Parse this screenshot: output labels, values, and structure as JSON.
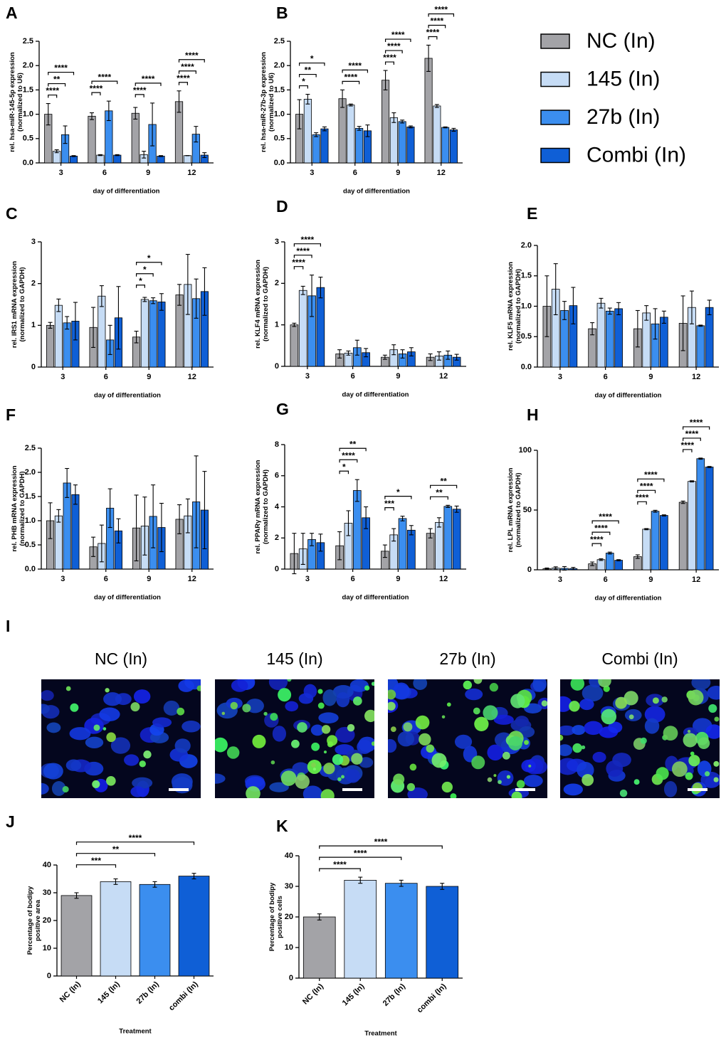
{
  "legend": [
    {
      "name": "NC (In)",
      "color": "#a3a3a7"
    },
    {
      "name": "145 (In)",
      "color": "#c6dcf5"
    },
    {
      "name": "27b (In)",
      "color": "#3b8eef"
    },
    {
      "name": "Combi (In)",
      "color": "#0f5fd6"
    }
  ],
  "chart_data": [
    {
      "panel": "A",
      "type": "grouped_bar",
      "ylabel": [
        "rel. hsa-miR-145-5p expression",
        "(normalized to U6)"
      ],
      "xlabel": "day of differentiation",
      "categories": [
        "3",
        "6",
        "9",
        "12"
      ],
      "series": [
        {
          "values": [
            1.0,
            0.96,
            1.02,
            1.26
          ],
          "errors": [
            0.22,
            0.07,
            0.12,
            0.22
          ]
        },
        {
          "values": [
            0.24,
            0.16,
            0.17,
            0.15
          ],
          "errors": [
            0.03,
            0.01,
            0.07,
            0.0
          ]
        },
        {
          "values": [
            0.58,
            1.07,
            0.79,
            0.59
          ],
          "errors": [
            0.18,
            0.2,
            0.44,
            0.16
          ]
        },
        {
          "values": [
            0.14,
            0.16,
            0.14,
            0.16
          ],
          "errors": [
            0.01,
            0.01,
            0.01,
            0.05
          ]
        }
      ],
      "ylim": [
        0,
        2.5
      ],
      "yticks": [
        {
          "value": 0,
          "label": "0.0"
        },
        0.5,
        {
          "value": 1,
          "label": "1.0"
        },
        1.5,
        {
          "value": 2,
          "label": "2.0"
        },
        2.5
      ],
      "brackets": [
        {
          "category": "3",
          "from": "NC (In)",
          "to": "145 (In)",
          "label": "****"
        },
        {
          "category": "3",
          "from": "NC (In)",
          "to": "27b (In)",
          "label": "**"
        },
        {
          "category": "3",
          "from": "NC (In)",
          "to": "Combi (In)",
          "label": "****"
        },
        {
          "category": "6",
          "from": "NC (In)",
          "to": "145 (In)",
          "label": "****"
        },
        {
          "category": "6",
          "from": "NC (In)",
          "to": "Combi (In)",
          "label": "****"
        },
        {
          "category": "9",
          "from": "NC (In)",
          "to": "145 (In)",
          "label": "****"
        },
        {
          "category": "9",
          "from": "NC (In)",
          "to": "Combi (In)",
          "label": "****"
        },
        {
          "category": "12",
          "from": "NC (In)",
          "to": "145 (In)",
          "label": "****"
        },
        {
          "category": "12",
          "from": "NC (In)",
          "to": "27b (In)",
          "label": "****"
        },
        {
          "category": "12",
          "from": "NC (In)",
          "to": "Combi (In)",
          "label": "****"
        }
      ]
    },
    {
      "panel": "B",
      "type": "grouped_bar",
      "ylabel": [
        "rel. hsa-miR-27b-3p expression",
        "(normalized to U6)"
      ],
      "xlabel": "day of differentiation",
      "categories": [
        "3",
        "6",
        "9",
        "12"
      ],
      "series": [
        {
          "values": [
            1.0,
            1.32,
            1.7,
            2.15
          ],
          "errors": [
            0.3,
            0.18,
            0.2,
            0.27
          ]
        },
        {
          "values": [
            1.31,
            1.19,
            0.93,
            1.17
          ],
          "errors": [
            0.1,
            0.02,
            0.1,
            0.03
          ]
        },
        {
          "values": [
            0.58,
            0.71,
            0.85,
            0.73
          ],
          "errors": [
            0.04,
            0.04,
            0.03,
            0.01
          ]
        },
        {
          "values": [
            0.7,
            0.66,
            0.74,
            0.68
          ],
          "errors": [
            0.04,
            0.12,
            0.02,
            0.03
          ]
        }
      ],
      "ylim": [
        0,
        2.5
      ],
      "yticks": [
        {
          "value": 0,
          "label": "0.0"
        },
        0.5,
        {
          "value": 1,
          "label": "1.0"
        },
        1.5,
        {
          "value": 2,
          "label": "2.0"
        },
        2.5
      ],
      "brackets": [
        {
          "category": "3",
          "from": "NC (In)",
          "to": "145 (In)",
          "label": "*"
        },
        {
          "category": "3",
          "from": "NC (In)",
          "to": "27b (In)",
          "label": "**"
        },
        {
          "category": "3",
          "from": "NC (In)",
          "to": "Combi (In)",
          "label": "*"
        },
        {
          "category": "6",
          "from": "NC (In)",
          "to": "27b (In)",
          "label": "****"
        },
        {
          "category": "6",
          "from": "NC (In)",
          "to": "Combi (In)",
          "label": "****"
        },
        {
          "category": "9",
          "from": "NC (In)",
          "to": "145 (In)",
          "label": "****"
        },
        {
          "category": "9",
          "from": "NC (In)",
          "to": "27b (In)",
          "label": "****"
        },
        {
          "category": "9",
          "from": "NC (In)",
          "to": "Combi (In)",
          "label": "****"
        },
        {
          "category": "12",
          "from": "NC (In)",
          "to": "145 (In)",
          "label": "****"
        },
        {
          "category": "12",
          "from": "NC (In)",
          "to": "27b (In)",
          "label": "****"
        },
        {
          "category": "12",
          "from": "NC (In)",
          "to": "Combi (In)",
          "label": "****"
        }
      ]
    },
    {
      "panel": "C",
      "type": "grouped_bar",
      "ylabel": [
        "rel. IRS1 mRNA expression",
        "(normalized to GAPDH)"
      ],
      "xlabel": "day of differentiation",
      "categories": [
        "3",
        "6",
        "9",
        "12"
      ],
      "series": [
        {
          "values": [
            1.0,
            0.95,
            0.72,
            1.73
          ],
          "errors": [
            0.07,
            0.48,
            0.14,
            0.25
          ]
        },
        {
          "values": [
            1.48,
            1.7,
            1.62,
            1.98
          ],
          "errors": [
            0.15,
            0.25,
            0.05,
            0.72
          ]
        },
        {
          "values": [
            1.06,
            0.65,
            1.59,
            1.64
          ],
          "errors": [
            0.15,
            0.35,
            0.07,
            0.47
          ]
        },
        {
          "values": [
            1.1,
            1.18,
            1.56,
            1.81
          ],
          "errors": [
            0.45,
            0.75,
            0.2,
            0.57
          ]
        }
      ],
      "ylim": [
        0,
        3
      ],
      "yticks": [
        0,
        1,
        2,
        3
      ],
      "brackets": [
        {
          "category": "9",
          "from": "NC (In)",
          "to": "145 (In)",
          "label": "*"
        },
        {
          "category": "9",
          "from": "NC (In)",
          "to": "27b (In)",
          "label": "*"
        },
        {
          "category": "9",
          "from": "NC (In)",
          "to": "Combi (In)",
          "label": "*"
        }
      ]
    },
    {
      "panel": "D",
      "type": "grouped_bar",
      "ylabel": [
        "rel. KLF4 mRNA expression",
        "(normalized to GAPDH)"
      ],
      "xlabel": "day of differentiation",
      "categories": [
        "3",
        "6",
        "9",
        "12"
      ],
      "series": [
        {
          "values": [
            1.0,
            0.3,
            0.22,
            0.22
          ],
          "errors": [
            0.04,
            0.1,
            0.05,
            0.08
          ]
        },
        {
          "values": [
            1.83,
            0.32,
            0.4,
            0.25
          ],
          "errors": [
            0.1,
            0.05,
            0.12,
            0.1
          ]
        },
        {
          "values": [
            1.7,
            0.45,
            0.3,
            0.27
          ],
          "errors": [
            0.5,
            0.18,
            0.1,
            0.1
          ]
        },
        {
          "values": [
            1.9,
            0.33,
            0.35,
            0.22
          ],
          "errors": [
            0.25,
            0.1,
            0.1,
            0.07
          ]
        }
      ],
      "ylim": [
        0,
        3
      ],
      "yticks": [
        0,
        1,
        2,
        3
      ],
      "brackets": [
        {
          "category": "3",
          "from": "NC (In)",
          "to": "145 (In)",
          "label": "****"
        },
        {
          "category": "3",
          "from": "NC (In)",
          "to": "27b (In)",
          "label": "****"
        },
        {
          "category": "3",
          "from": "NC (In)",
          "to": "Combi (In)",
          "label": "****"
        }
      ]
    },
    {
      "panel": "E",
      "type": "grouped_bar",
      "ylabel": [
        "rel. KLF5 mRNA expression",
        "(normalized to GAPDH)"
      ],
      "xlabel": "day of differentiation",
      "categories": [
        "3",
        "6",
        "9",
        "12"
      ],
      "series": [
        {
          "values": [
            1.0,
            0.63,
            0.63,
            0.72
          ],
          "errors": [
            0.5,
            0.1,
            0.3,
            0.45
          ]
        },
        {
          "values": [
            1.28,
            1.05,
            0.89,
            0.98
          ],
          "errors": [
            0.42,
            0.08,
            0.12,
            0.27
          ]
        },
        {
          "values": [
            0.93,
            0.92,
            0.71,
            0.68
          ],
          "errors": [
            0.15,
            0.05,
            0.25,
            0.01
          ]
        },
        {
          "values": [
            1.01,
            0.96,
            0.82,
            0.98
          ],
          "errors": [
            0.3,
            0.1,
            0.1,
            0.12
          ]
        }
      ],
      "ylim": [
        0,
        2
      ],
      "yticks": [
        {
          "value": 0,
          "label": "0.0"
        },
        0.5,
        {
          "value": 1,
          "label": "1.0"
        },
        1.5,
        {
          "value": 2,
          "label": "2.0"
        }
      ],
      "brackets": []
    },
    {
      "panel": "F",
      "type": "grouped_bar",
      "ylabel": [
        "rel. PHB mRNA expression",
        "(normalized to GAPDH)"
      ],
      "xlabel": "day of differentiation",
      "categories": [
        "3",
        "6",
        "9",
        "12"
      ],
      "series": [
        {
          "values": [
            1.0,
            0.46,
            0.85,
            1.03
          ],
          "errors": [
            0.37,
            0.2,
            0.68,
            0.3
          ]
        },
        {
          "values": [
            1.1,
            0.53,
            0.89,
            1.1
          ],
          "errors": [
            0.13,
            0.38,
            0.6,
            0.35
          ]
        },
        {
          "values": [
            1.78,
            1.26,
            1.09,
            1.39
          ],
          "errors": [
            0.3,
            0.4,
            0.65,
            0.95
          ]
        },
        {
          "values": [
            1.54,
            0.79,
            0.86,
            1.22
          ],
          "errors": [
            0.2,
            0.25,
            0.5,
            0.8
          ]
        }
      ],
      "ylim": [
        0,
        2.5
      ],
      "yticks": [
        {
          "value": 0,
          "label": "0.0"
        },
        0.5,
        {
          "value": 1,
          "label": "1.0"
        },
        1.5,
        {
          "value": 2,
          "label": "2.0"
        },
        2.5
      ],
      "brackets": []
    },
    {
      "panel": "G",
      "type": "grouped_bar",
      "ylabel": [
        "rel. PPARγ mRNA expression",
        "(normalized to GAPDH)"
      ],
      "xlabel": "day of differentiation",
      "categories": [
        "3",
        "6",
        "9",
        "12"
      ],
      "series": [
        {
          "values": [
            1.0,
            1.5,
            1.15,
            2.3
          ],
          "errors": [
            1.3,
            0.9,
            0.4,
            0.3
          ]
        },
        {
          "values": [
            1.3,
            2.95,
            2.2,
            3.0
          ],
          "errors": [
            1.0,
            0.8,
            0.4,
            0.3
          ]
        },
        {
          "values": [
            1.9,
            5.05,
            3.25,
            4.03
          ],
          "errors": [
            0.4,
            0.7,
            0.15,
            0.07
          ]
        },
        {
          "values": [
            1.7,
            3.3,
            2.5,
            3.85
          ],
          "errors": [
            0.55,
            0.7,
            0.3,
            0.2
          ]
        }
      ],
      "ylim": [
        0,
        8
      ],
      "yticks": [
        0,
        2,
        4,
        6,
        8
      ],
      "brackets": [
        {
          "category": "6",
          "from": "NC (In)",
          "to": "145 (In)",
          "label": "*"
        },
        {
          "category": "6",
          "from": "NC (In)",
          "to": "27b (In)",
          "label": "****"
        },
        {
          "category": "6",
          "from": "NC (In)",
          "to": "Combi (In)",
          "label": "**"
        },
        {
          "category": "9",
          "from": "NC (In)",
          "to": "145 (In)",
          "label": "***"
        },
        {
          "category": "9",
          "from": "NC (In)",
          "to": "Combi (In)",
          "label": "*"
        },
        {
          "category": "12",
          "from": "NC (In)",
          "to": "27b (In)",
          "label": "**"
        },
        {
          "category": "12",
          "from": "NC (In)",
          "to": "Combi (In)",
          "label": "**"
        }
      ]
    },
    {
      "panel": "H",
      "type": "grouped_bar",
      "ylabel": [
        "rel. LPL mRNA expression",
        "(normalized to GAPDH)"
      ],
      "xlabel": "day of differentiation",
      "categories": [
        "3",
        "6",
        "9",
        "12"
      ],
      "series": [
        {
          "values": [
            1.0,
            5,
            11,
            56.5
          ],
          "errors": [
            0.5,
            1.5,
            1.5,
            1
          ]
        },
        {
          "values": [
            1.5,
            8.5,
            34,
            74
          ],
          "errors": [
            1,
            0.7,
            0.5,
            0.5
          ]
        },
        {
          "values": [
            1.2,
            14,
            49,
            93
          ],
          "errors": [
            1.5,
            0.8,
            0.8,
            0.5
          ]
        },
        {
          "values": [
            1.0,
            8,
            45.5,
            86
          ],
          "errors": [
            1,
            0.5,
            0.5,
            0.5
          ]
        }
      ],
      "ylim": [
        0,
        100
      ],
      "yticks": [
        0,
        50,
        100
      ],
      "brackets": [
        {
          "category": "6",
          "from": "NC (In)",
          "to": "145 (In)",
          "label": "****"
        },
        {
          "category": "6",
          "from": "NC (In)",
          "to": "27b (In)",
          "label": "****"
        },
        {
          "category": "6",
          "from": "NC (In)",
          "to": "Combi (In)",
          "label": "****"
        },
        {
          "category": "9",
          "from": "NC (In)",
          "to": "145 (In)",
          "label": "****"
        },
        {
          "category": "9",
          "from": "NC (In)",
          "to": "27b (In)",
          "label": "****"
        },
        {
          "category": "9",
          "from": "NC (In)",
          "to": "Combi (In)",
          "label": "****"
        },
        {
          "category": "12",
          "from": "NC (In)",
          "to": "145 (In)",
          "label": "****"
        },
        {
          "category": "12",
          "from": "NC (In)",
          "to": "27b (In)",
          "label": "****"
        },
        {
          "category": "12",
          "from": "NC (In)",
          "to": "Combi (In)",
          "label": "****"
        }
      ]
    },
    {
      "panel": "J",
      "type": "bar",
      "ylabel": [
        "Percentage of bodipy",
        "positive area"
      ],
      "xlabel": "Treatment",
      "categories": [
        "NC (In)",
        "145 (In)",
        "27b (In)",
        "combi (In)"
      ],
      "values": [
        29,
        34,
        33,
        36
      ],
      "errors": [
        1,
        1,
        1,
        1
      ],
      "colors": [
        "#a3a3a7",
        "#c6dcf5",
        "#3b8eef",
        "#0f5fd6"
      ],
      "ylim": [
        0,
        40
      ],
      "yticks": [
        0,
        10,
        20,
        30,
        40
      ],
      "brackets": [
        {
          "from": "NC (In)",
          "to": "145 (In)",
          "label": "***"
        },
        {
          "from": "NC (In)",
          "to": "27b (In)",
          "label": "**"
        },
        {
          "from": "NC (In)",
          "to": "combi (In)",
          "label": "****"
        }
      ]
    },
    {
      "panel": "K",
      "type": "bar",
      "ylabel": [
        "Percentage of bodipy",
        "positive cells"
      ],
      "xlabel": "Treatment",
      "categories": [
        "NC (In)",
        "145 (In)",
        "27b (In)",
        "combi (In)"
      ],
      "values": [
        20,
        32,
        31,
        30
      ],
      "errors": [
        1,
        1,
        1,
        1
      ],
      "colors": [
        "#a3a3a7",
        "#c6dcf5",
        "#3b8eef",
        "#0f5fd6"
      ],
      "ylim": [
        0,
        40
      ],
      "yticks": [
        0,
        10,
        20,
        30,
        40
      ],
      "brackets": [
        {
          "from": "NC (In)",
          "to": "145 (In)",
          "label": "****"
        },
        {
          "from": "NC (In)",
          "to": "27b (In)",
          "label": "****"
        },
        {
          "from": "NC (In)",
          "to": "combi (In)",
          "label": "****"
        }
      ]
    }
  ],
  "images": {
    "panel": "I",
    "titles": [
      "NC (In)",
      "145 (In)",
      "27b (In)",
      "Combi (In)"
    ]
  }
}
